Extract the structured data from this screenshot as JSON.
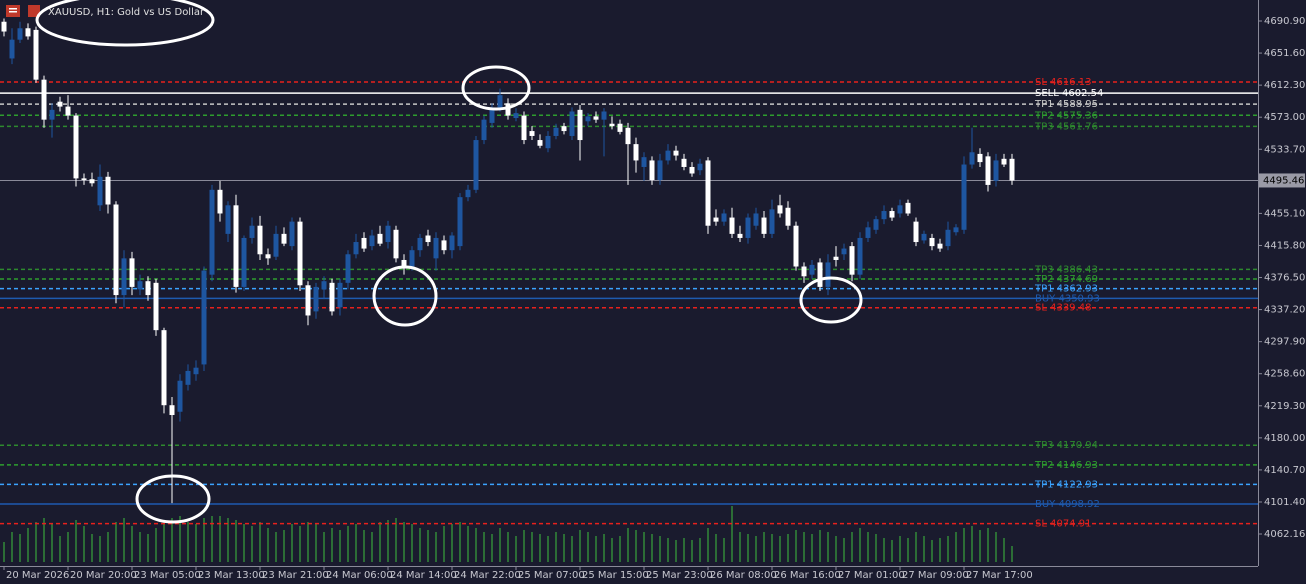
{
  "chart_data": {
    "type": "candlestick",
    "title": "XAUUSD, H1:  Gold vs US Dollar",
    "background": "#1a1b2e",
    "up_color": "#1e56a0",
    "down_color": "#ffffff",
    "volume_color": "#3fbf3f",
    "grid": false,
    "xlim": [
      -0.5,
      156.75
    ],
    "xticks": [
      {
        "value": 0,
        "label": "20 Mar 2026"
      },
      {
        "value": 8,
        "label": "20 Mar 20:00"
      },
      {
        "value": 16,
        "label": "23 Mar 05:00"
      },
      {
        "value": 24,
        "label": "23 Mar 13:00"
      },
      {
        "value": 32,
        "label": "23 Mar 21:00"
      },
      {
        "value": 40,
        "label": "24 Mar 06:00"
      },
      {
        "value": 48,
        "label": "24 Mar 14:00"
      },
      {
        "value": 56,
        "label": "24 Mar 22:00"
      },
      {
        "value": 64,
        "label": "25 Mar 07:00"
      },
      {
        "value": 72,
        "label": "25 Mar 15:00"
      },
      {
        "value": 80,
        "label": "25 Mar 23:00"
      },
      {
        "value": 88,
        "label": "26 Mar 08:00"
      },
      {
        "value": 96,
        "label": "26 Mar 16:00"
      },
      {
        "value": 104,
        "label": "27 Mar 01:00"
      },
      {
        "value": 112,
        "label": "27 Mar 09:00"
      },
      {
        "value": 120,
        "label": "27 Mar 17:00"
      }
    ],
    "ylim": [
      4022.94,
      4716.64
    ],
    "yticks": [
      {
        "value": 4690.9,
        "label": "4690.90"
      },
      {
        "value": 4651.6,
        "label": "4651.60"
      },
      {
        "value": 4612.3,
        "label": "4612.30"
      },
      {
        "value": 4573,
        "label": "4573.00"
      },
      {
        "value": 4533.7,
        "label": "4533.70"
      },
      {
        "value": 4455.1,
        "label": "4455.10"
      },
      {
        "value": 4415.8,
        "label": "4415.80"
      },
      {
        "value": 4376.5,
        "label": "4376.50"
      },
      {
        "value": 4337.2,
        "label": "4337.20"
      },
      {
        "value": 4297.9,
        "label": "4297.90"
      },
      {
        "value": 4258.6,
        "label": "4258.60"
      },
      {
        "value": 4219.3,
        "label": "4219.30"
      },
      {
        "value": 4180,
        "label": "4180.00"
      },
      {
        "value": 4140.7,
        "label": "4140.70"
      },
      {
        "value": 4101.4,
        "label": "4101.40"
      },
      {
        "value": 4062.16,
        "label": "4062.16"
      }
    ],
    "current_price": {
      "value": 4495.46,
      "label": "4495.46"
    },
    "levels": [
      {
        "label": "SL 4616.13",
        "value": 4616.13,
        "color": "#e8211c",
        "dash": true
      },
      {
        "label": "SELL 4602.54",
        "value": 4602.54,
        "color": "#ffffff",
        "dash": false
      },
      {
        "label": "TP1 4588.95",
        "value": 4588.95,
        "color": "#c8c8c8",
        "dash": true
      },
      {
        "label": "TP2 4575.36",
        "value": 4575.36,
        "color": "#2e9e2e",
        "dash": true
      },
      {
        "label": "TP3 4561.76",
        "value": 4561.76,
        "color": "#2e8a2e",
        "dash": true
      },
      {
        "label": "TP3 4386.43",
        "value": 4386.43,
        "color": "#2e8a2e",
        "dash": true
      },
      {
        "label": "TP2 4374.69",
        "value": 4374.69,
        "color": "#2e9e2e",
        "dash": true
      },
      {
        "label": "TP1 4362.93",
        "value": 4362.93,
        "color": "#3ba3ff",
        "dash": true
      },
      {
        "label": "BUY 4350.93",
        "value": 4350.93,
        "color": "#1e5bb0",
        "dash": false
      },
      {
        "label": "SL 4339.48",
        "value": 4339.48,
        "color": "#e8211c",
        "dash": true
      },
      {
        "label": "TP3 4170.94",
        "value": 4170.94,
        "color": "#2e8a2e",
        "dash": true
      },
      {
        "label": "TP2 4146.93",
        "value": 4146.93,
        "color": "#2e9e2e",
        "dash": true
      },
      {
        "label": "TP1 4122.93",
        "value": 4122.93,
        "color": "#3ba3ff",
        "dash": true
      },
      {
        "label": "BUY 4098.92",
        "value": 4098.92,
        "color": "#1e5bb0",
        "dash": false
      },
      {
        "label": "SL 4074.91",
        "value": 4074.91,
        "color": "#e8211c",
        "dash": true
      }
    ],
    "open": [
      4690,
      4645,
      4668,
      4682,
      4680,
      4619,
      4570,
      4592,
      4586,
      4575,
      4498,
      4497,
      4465,
      4500,
      4466,
      4355,
      4400,
      4362,
      4372,
      4370,
      4312,
      4220,
      4212,
      4245,
      4258,
      4270,
      4380,
      4484,
      4430,
      4465,
      4365,
      4425,
      4440,
      4405,
      4402,
      4430,
      4415,
      4445,
      4367,
      4335,
      4362,
      4370,
      4340,
      4370,
      4405,
      4425,
      4415,
      4430,
      4420,
      4435,
      4398,
      4390,
      4410,
      4428,
      4400,
      4422,
      4410,
      4415,
      4475,
      4484,
      4545,
      4566,
      4585,
      4590,
      4572,
      4575,
      4556,
      4545,
      4535,
      4550,
      4562,
      4550,
      4582,
      4568,
      4574,
      4570,
      4565,
      4565,
      4560,
      4540,
      4512,
      4520,
      4496,
      4520,
      4532,
      4522,
      4512,
      4508,
      4520,
      4450,
      4445,
      4450,
      4430,
      4425,
      4440,
      4450,
      4430,
      4465,
      4462,
      4440,
      4390,
      4380,
      4395,
      4365,
      4402,
      4405,
      4415,
      4380,
      4425,
      4435,
      4448,
      4458,
      4455,
      4468,
      4445,
      4422,
      4425,
      4418,
      4415,
      4432,
      4435,
      4515,
      4528,
      4525,
      4495,
      4522,
      4522
    ],
    "high": [
      4694,
      4682,
      4690,
      4688,
      4684,
      4624,
      4590,
      4598,
      4600,
      4578,
      4504,
      4505,
      4515,
      4506,
      4470,
      4410,
      4408,
      4380,
      4378,
      4375,
      4315,
      4230,
      4258,
      4270,
      4275,
      4390,
      4490,
      4495,
      4470,
      4478,
      4428,
      4450,
      4452,
      4412,
      4440,
      4438,
      4450,
      4450,
      4372,
      4370,
      4378,
      4375,
      4375,
      4410,
      4430,
      4432,
      4435,
      4440,
      4446,
      4440,
      4405,
      4415,
      4430,
      4435,
      4432,
      4428,
      4432,
      4480,
      4490,
      4550,
      4575,
      4590,
      4608,
      4596,
      4584,
      4580,
      4562,
      4552,
      4556,
      4565,
      4566,
      4585,
      4588,
      4578,
      4580,
      4584,
      4574,
      4570,
      4566,
      4548,
      4530,
      4525,
      4528,
      4540,
      4538,
      4528,
      4518,
      4522,
      4524,
      4460,
      4460,
      4462,
      4440,
      4455,
      4462,
      4458,
      4472,
      4478,
      4470,
      4445,
      4395,
      4398,
      4400,
      4405,
      4415,
      4418,
      4420,
      4432,
      4445,
      4452,
      4465,
      4462,
      4472,
      4472,
      4450,
      4434,
      4430,
      4424,
      4445,
      4442,
      4525,
      4560,
      4535,
      4530,
      4528,
      4528,
      4528
    ],
    "low": [
      4672,
      4638,
      4664,
      4668,
      4615,
      4560,
      4548,
      4580,
      4570,
      4488,
      4490,
      4488,
      4458,
      4455,
      4345,
      4340,
      4355,
      4355,
      4348,
      4305,
      4210,
      4100,
      4200,
      4238,
      4250,
      4262,
      4372,
      4445,
      4420,
      4358,
      4360,
      4418,
      4398,
      4392,
      4398,
      4415,
      4410,
      4360,
      4318,
      4326,
      4350,
      4330,
      4330,
      4362,
      4400,
      4408,
      4410,
      4415,
      4412,
      4395,
      4380,
      4385,
      4402,
      4415,
      4385,
      4405,
      4400,
      4410,
      4470,
      4480,
      4540,
      4560,
      4580,
      4570,
      4568,
      4540,
      4545,
      4535,
      4530,
      4546,
      4552,
      4545,
      4520,
      4562,
      4566,
      4525,
      4558,
      4552,
      4490,
      4505,
      4495,
      4490,
      4490,
      4515,
      4520,
      4508,
      4500,
      4502,
      4430,
      4440,
      4440,
      4425,
      4420,
      4418,
      4435,
      4425,
      4425,
      4450,
      4435,
      4385,
      4370,
      4375,
      4360,
      4355,
      4390,
      4398,
      4372,
      4375,
      4420,
      4430,
      4442,
      4446,
      4450,
      4452,
      4415,
      4418,
      4410,
      4408,
      4410,
      4428,
      4430,
      4510,
      4512,
      4482,
      4488,
      4512,
      4490
    ],
    "close": [
      4678,
      4668,
      4682,
      4672,
      4619,
      4570,
      4582,
      4586,
      4575,
      4498,
      4496,
      4492,
      4500,
      4466,
      4355,
      4400,
      4365,
      4372,
      4355,
      4312,
      4220,
      4208,
      4250,
      4262,
      4266,
      4385,
      4484,
      4455,
      4465,
      4365,
      4425,
      4440,
      4405,
      4400,
      4430,
      4418,
      4445,
      4367,
      4330,
      4365,
      4372,
      4335,
      4370,
      4405,
      4420,
      4412,
      4428,
      4418,
      4440,
      4400,
      4388,
      4410,
      4425,
      4420,
      4425,
      4410,
      4428,
      4475,
      4484,
      4545,
      4570,
      4585,
      4600,
      4575,
      4578,
      4545,
      4550,
      4538,
      4550,
      4560,
      4556,
      4580,
      4545,
      4574,
      4570,
      4580,
      4562,
      4555,
      4540,
      4520,
      4524,
      4496,
      4520,
      4532,
      4526,
      4512,
      4504,
      4516,
      4440,
      4445,
      4455,
      4430,
      4425,
      4450,
      4455,
      4430,
      4460,
      4455,
      4440,
      4390,
      4378,
      4392,
      4365,
      4395,
      4398,
      4412,
      4380,
      4425,
      4438,
      4448,
      4458,
      4450,
      4465,
      4455,
      4420,
      4430,
      4415,
      4412,
      4435,
      4438,
      4515,
      4530,
      4518,
      4490,
      4520,
      4515,
      4495.46
    ],
    "volume_ylim": [
      0,
      60
    ],
    "volume": [
      20,
      30,
      28,
      34,
      40,
      44,
      38,
      26,
      30,
      42,
      36,
      28,
      26,
      30,
      40,
      44,
      36,
      30,
      28,
      34,
      42,
      44,
      46,
      40,
      38,
      44,
      46,
      46,
      44,
      42,
      38,
      36,
      40,
      34,
      30,
      32,
      38,
      36,
      40,
      38,
      30,
      34,
      32,
      36,
      38,
      32,
      30,
      40,
      42,
      44,
      40,
      38,
      34,
      32,
      30,
      36,
      38,
      40,
      36,
      34,
      30,
      28,
      34,
      30,
      26,
      32,
      30,
      28,
      26,
      30,
      28,
      26,
      32,
      30,
      26,
      28,
      24,
      26,
      34,
      32,
      30,
      28,
      26,
      24,
      22,
      24,
      22,
      24,
      34,
      28,
      24,
      56,
      30,
      28,
      26,
      30,
      28,
      26,
      28,
      32,
      30,
      28,
      32,
      30,
      26,
      24,
      30,
      34,
      30,
      28,
      24,
      22,
      26,
      24,
      30,
      26,
      22,
      24,
      26,
      30,
      34,
      36,
      32,
      34,
      30,
      24,
      16
    ]
  }
}
